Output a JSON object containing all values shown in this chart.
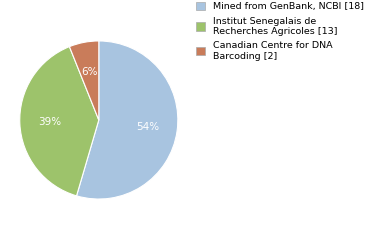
{
  "slices": [
    18,
    13,
    2
  ],
  "percentages": [
    "54%",
    "39%",
    "6%"
  ],
  "colors": [
    "#a8c4e0",
    "#9dc36b",
    "#c97c5a"
  ],
  "legend_labels": [
    "Mined from GenBank, NCBI [18]",
    "Institut Senegalais de\nRecherches Agricoles [13]",
    "Canadian Centre for DNA\nBarcoding [2]"
  ],
  "startangle": 90,
  "background_color": "#ffffff",
  "pct_font_size": 7.5,
  "legend_font_size": 6.8
}
